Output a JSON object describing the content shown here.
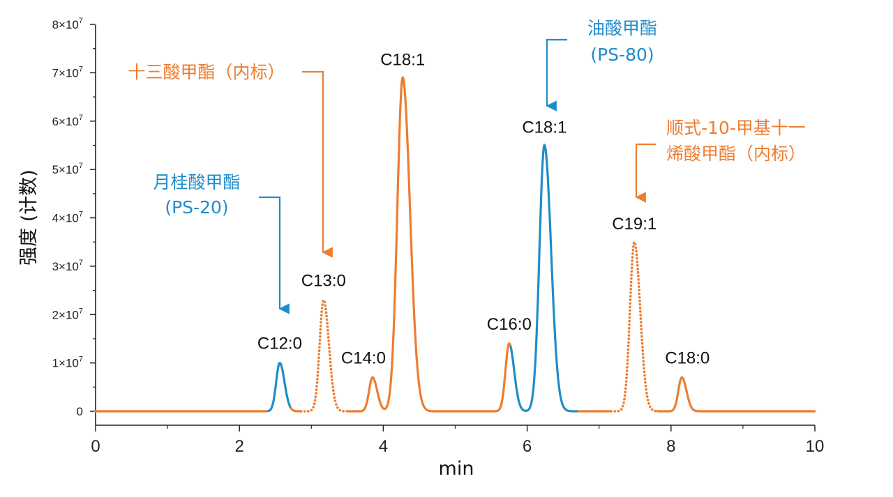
{
  "colors": {
    "orange": "#ED7D31",
    "blue": "#1F8DC9",
    "axis": "#222222"
  },
  "chart_data": {
    "type": "line",
    "xlabel": "min",
    "ylabel": "强度 (计数)",
    "xlim": [
      0,
      10
    ],
    "ylim": [
      0,
      80000000
    ],
    "x_ticks": [
      0,
      2,
      4,
      6,
      8,
      10
    ],
    "x_tick_labels": [
      "0",
      "2",
      "4",
      "6",
      "8",
      "10"
    ],
    "y_ticks": [
      0,
      10000000,
      20000000,
      30000000,
      40000000,
      50000000,
      60000000,
      70000000,
      80000000
    ],
    "y_tick_labels": [
      "0",
      "1×10",
      "2×10",
      "3×10",
      "4×10",
      "5×10",
      "6×10",
      "7×10",
      "8×10"
    ],
    "y_tick_exponent": "7",
    "grid": false,
    "baseline": 0,
    "peaks": [
      {
        "label": "C12:0",
        "rt": 2.56,
        "height": 10000000,
        "color": "blue",
        "dotted": false
      },
      {
        "label": "C13:0",
        "rt": 3.17,
        "height": 23000000,
        "color": "orange",
        "dotted": true
      },
      {
        "label": "C14:0",
        "rt": 3.85,
        "height": 7000000,
        "color": "orange",
        "dotted": false
      },
      {
        "label": "C18:1",
        "rt": 4.27,
        "height": 69000000,
        "color": "orange",
        "dotted": false
      },
      {
        "label": "C16:0",
        "rt": 5.75,
        "height": 14000000,
        "color": "orange",
        "dotted": false
      },
      {
        "label": "C18:1",
        "rt": 6.24,
        "height": 55000000,
        "color": "blue",
        "dotted": false
      },
      {
        "label": "C19:1",
        "rt": 7.49,
        "height": 35000000,
        "color": "orange",
        "dotted": true
      },
      {
        "label": "C18:0",
        "rt": 8.15,
        "height": 7000000,
        "color": "orange",
        "dotted": false
      }
    ],
    "annotations": [
      {
        "lines": [
          "月桂酸甲酯",
          "(PS-20)"
        ],
        "color": "blue",
        "target_peak": "C12:0"
      },
      {
        "lines": [
          "十三酸甲酯（内标）"
        ],
        "color": "orange",
        "target_peak": "C13:0"
      },
      {
        "lines": [
          "油酸甲酯",
          "(PS-80)"
        ],
        "color": "blue",
        "target_peak": "C18:1 (6.24 min)"
      },
      {
        "lines": [
          "顺式-10-甲基十一",
          "烯酸甲酯（内标）"
        ],
        "color": "orange",
        "target_peak": "C19:1"
      }
    ]
  }
}
